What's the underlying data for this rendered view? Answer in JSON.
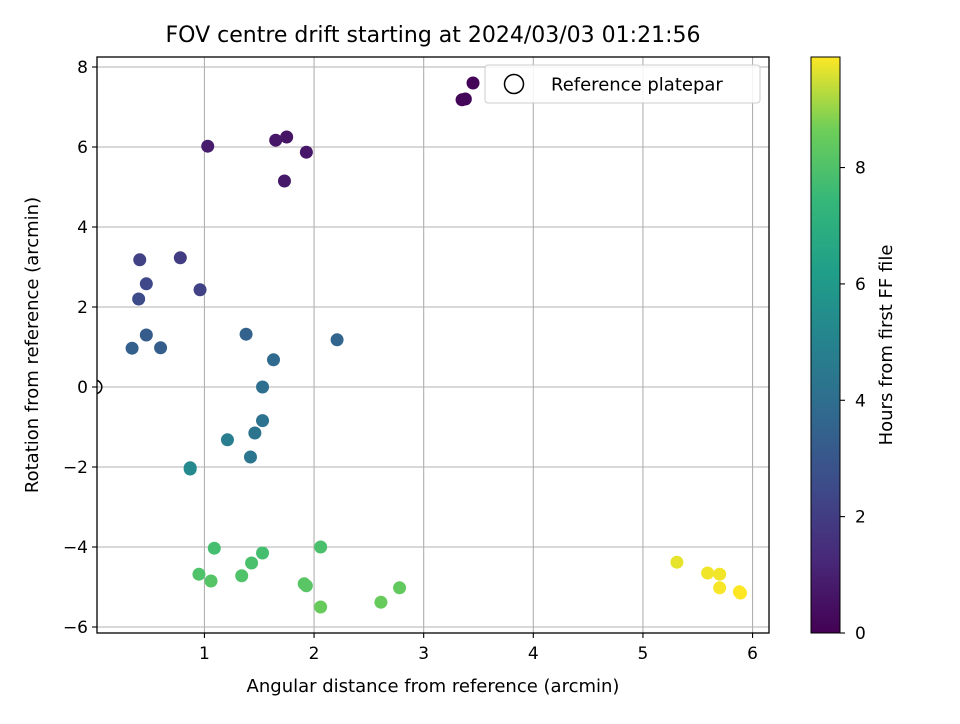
{
  "chart_data": {
    "type": "scatter",
    "title": "FOV centre drift starting at 2024/03/03 01:21:56",
    "xlabel": "Angular distance from reference (arcmin)",
    "ylabel": "Rotation from reference (arcmin)",
    "xlim": [
      0.02,
      6.15
    ],
    "ylim": [
      -6.15,
      8.25
    ],
    "xticks": [
      1,
      2,
      3,
      4,
      5,
      6
    ],
    "yticks": [
      -6,
      -4,
      -2,
      0,
      2,
      4,
      6,
      8
    ],
    "grid": true,
    "legend": {
      "position": "top-right",
      "entries": [
        "Reference platepar"
      ]
    },
    "reference_point": {
      "x": 0,
      "y": 0
    },
    "colorbar": {
      "label": "Hours from first FF file",
      "range": [
        0,
        9.9
      ],
      "ticks": [
        0,
        2,
        4,
        6,
        8
      ],
      "colormap": "viridis"
    },
    "points": [
      {
        "x": 3.45,
        "y": 7.6,
        "hours": 0.1
      },
      {
        "x": 3.38,
        "y": 7.2,
        "hours": 0.15
      },
      {
        "x": 3.35,
        "y": 7.18,
        "hours": 0.2
      },
      {
        "x": 1.75,
        "y": 6.25,
        "hours": 0.6
      },
      {
        "x": 1.65,
        "y": 6.17,
        "hours": 0.7
      },
      {
        "x": 1.93,
        "y": 5.87,
        "hours": 0.7
      },
      {
        "x": 1.03,
        "y": 6.02,
        "hours": 0.85
      },
      {
        "x": 1.73,
        "y": 5.15,
        "hours": 0.75
      },
      {
        "x": 0.78,
        "y": 3.23,
        "hours": 2.0
      },
      {
        "x": 0.41,
        "y": 3.18,
        "hours": 2.2
      },
      {
        "x": 0.47,
        "y": 2.58,
        "hours": 2.4
      },
      {
        "x": 0.96,
        "y": 2.43,
        "hours": 2.2
      },
      {
        "x": 0.4,
        "y": 2.2,
        "hours": 2.5
      },
      {
        "x": 0.47,
        "y": 1.3,
        "hours": 3.2
      },
      {
        "x": 0.34,
        "y": 0.97,
        "hours": 3.4
      },
      {
        "x": 0.6,
        "y": 0.98,
        "hours": 3.3
      },
      {
        "x": 1.38,
        "y": 1.32,
        "hours": 3.5
      },
      {
        "x": 2.21,
        "y": 1.18,
        "hours": 3.6
      },
      {
        "x": 1.63,
        "y": 0.68,
        "hours": 3.8
      },
      {
        "x": 1.53,
        "y": 0.0,
        "hours": 4.0
      },
      {
        "x": 1.53,
        "y": -0.84,
        "hours": 4.2
      },
      {
        "x": 1.46,
        "y": -1.15,
        "hours": 4.3
      },
      {
        "x": 1.21,
        "y": -1.32,
        "hours": 4.7
      },
      {
        "x": 1.42,
        "y": -1.75,
        "hours": 4.4
      },
      {
        "x": 0.87,
        "y": -2.02,
        "hours": 5.2
      },
      {
        "x": 0.87,
        "y": -2.05,
        "hours": 5.3
      },
      {
        "x": 1.09,
        "y": -4.03,
        "hours": 7.8
      },
      {
        "x": 1.53,
        "y": -4.15,
        "hours": 7.8
      },
      {
        "x": 2.06,
        "y": -4.0,
        "hours": 7.9
      },
      {
        "x": 1.43,
        "y": -4.4,
        "hours": 7.9
      },
      {
        "x": 0.95,
        "y": -4.68,
        "hours": 8.0
      },
      {
        "x": 1.34,
        "y": -4.72,
        "hours": 8.0
      },
      {
        "x": 1.06,
        "y": -4.85,
        "hours": 8.1
      },
      {
        "x": 1.91,
        "y": -4.92,
        "hours": 8.2
      },
      {
        "x": 1.93,
        "y": -4.97,
        "hours": 8.2
      },
      {
        "x": 2.78,
        "y": -5.02,
        "hours": 8.4
      },
      {
        "x": 2.61,
        "y": -5.38,
        "hours": 8.5
      },
      {
        "x": 2.06,
        "y": -5.5,
        "hours": 8.5
      },
      {
        "x": 5.31,
        "y": -4.38,
        "hours": 9.7
      },
      {
        "x": 5.59,
        "y": -4.65,
        "hours": 9.8
      },
      {
        "x": 5.7,
        "y": -4.68,
        "hours": 9.8
      },
      {
        "x": 5.7,
        "y": -5.02,
        "hours": 9.85
      },
      {
        "x": 5.88,
        "y": -5.12,
        "hours": 9.9
      },
      {
        "x": 5.89,
        "y": -5.15,
        "hours": 9.9
      }
    ]
  }
}
